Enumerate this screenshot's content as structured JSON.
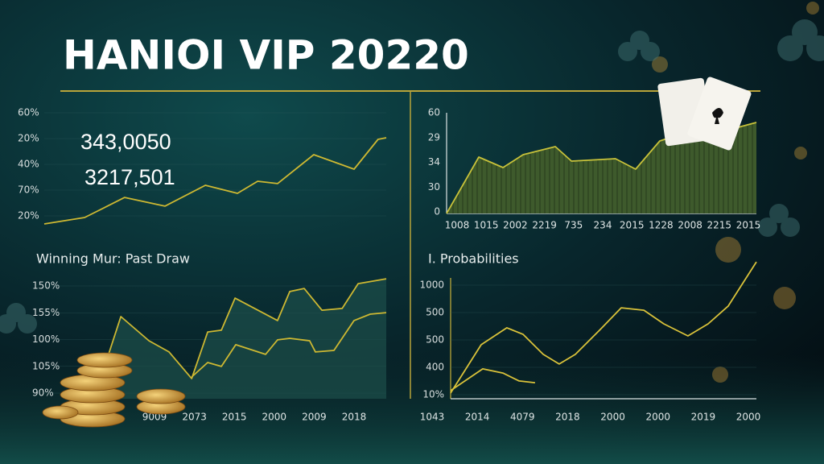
{
  "title": "HANIOI VIP 20220",
  "chart_data": [
    {
      "type": "line",
      "annotations": [
        "343,0050",
        "3217,501"
      ],
      "y_labels": [
        "60%",
        "20%",
        "40%",
        "70%",
        "20%"
      ],
      "xlim": [
        0,
        100
      ],
      "ylim": [
        0,
        100
      ],
      "series": [
        {
          "color": "#cdb832",
          "x": [
            0,
            11.8,
            23.5,
            35.3,
            47.1,
            56.5,
            62.4,
            68.2,
            78.8,
            90.6,
            97.6,
            100
          ],
          "values": [
            1.4,
            6.9,
            24.1,
            16.6,
            34.5,
            27.6,
            37.9,
            35.9,
            60.7,
            48.3,
            73.8,
            75.2
          ]
        }
      ]
    },
    {
      "type": "area",
      "y_labels": [
        "60",
        "29",
        "34",
        "30",
        "0"
      ],
      "x_labels": [
        "1008",
        "1015",
        "2002",
        "2219",
        "735",
        "234",
        "2015",
        "1228",
        "2008",
        "2215",
        "2015"
      ],
      "xlim": [
        0,
        100
      ],
      "ylim": [
        0,
        100
      ],
      "series": [
        {
          "color": "#c8c23a",
          "fill": "#3e5a2c",
          "x": [
            0,
            10.4,
            18.2,
            24.7,
            35.1,
            40.3,
            54.5,
            61,
            68.8,
            76.6,
            84.4,
            92.2,
            100
          ],
          "values": [
            0,
            56,
            45.6,
            58.4,
            66.4,
            52,
            54.4,
            44,
            72,
            80,
            76,
            84,
            90.4
          ]
        }
      ]
    },
    {
      "type": "line",
      "title": "Winning Mur: Past Draw",
      "y_labels": [
        "150%",
        "155%",
        "100%",
        "105%",
        "90%"
      ],
      "x_labels": [
        "9009",
        "2073",
        "2015",
        "2000",
        "2009",
        "2018"
      ],
      "xlim": [
        0,
        100
      ],
      "ylim": [
        0,
        100
      ],
      "series": [
        {
          "color": "#cdb832",
          "fill": "#1d4f4a",
          "x": [
            18.8,
            22.4,
            30.6,
            36.5,
            43.1,
            47.8,
            51.8,
            55.8,
            68.2,
            71.8,
            76,
            81.2,
            87.1,
            91.8,
            100
          ],
          "values": [
            36.7,
            68,
            48,
            38.7,
            16.7,
            55.3,
            56.7,
            83.3,
            64.7,
            88.7,
            91.3,
            73.3,
            74.7,
            95.3,
            99.3
          ]
        },
        {
          "color": "#cdb832",
          "x": [
            43.1,
            47.8,
            51.8,
            56,
            64.7,
            68.2,
            71.8,
            77.6,
            79.3,
            84.7,
            90.6,
            95.3,
            100
          ],
          "values": [
            18,
            30,
            26.7,
            44.7,
            36.7,
            48.7,
            50,
            48,
            38.7,
            40,
            64.7,
            70,
            71.3
          ]
        }
      ]
    },
    {
      "type": "line",
      "title": "I. Probabilities",
      "y_labels": [
        "1000",
        "500",
        "500",
        "400",
        "10%"
      ],
      "x_labels": [
        "1043",
        "2014",
        "4079",
        "2018",
        "2000",
        "2000",
        "2019",
        "2000"
      ],
      "xlim": [
        0,
        100
      ],
      "ylim": [
        0,
        100
      ],
      "series": [
        {
          "color": "#d9c23a",
          "x": [
            0,
            10,
            18.4,
            23.7,
            30.3,
            35.5,
            40.8,
            48.7,
            55.8,
            63.2,
            69.7,
            77.6,
            84.2,
            90.8,
            100
          ],
          "values": [
            4.7,
            44.7,
            58.7,
            53.3,
            36.7,
            28.7,
            36.7,
            56.7,
            75.3,
            73.3,
            62,
            52,
            62,
            76.7,
            113.3
          ]
        },
        {
          "color": "#d9c23a",
          "x": [
            0,
            10.5,
            17.1,
            22.4,
            27.6
          ],
          "values": [
            6.7,
            24.7,
            21.3,
            14.7,
            13.3
          ]
        }
      ]
    }
  ]
}
